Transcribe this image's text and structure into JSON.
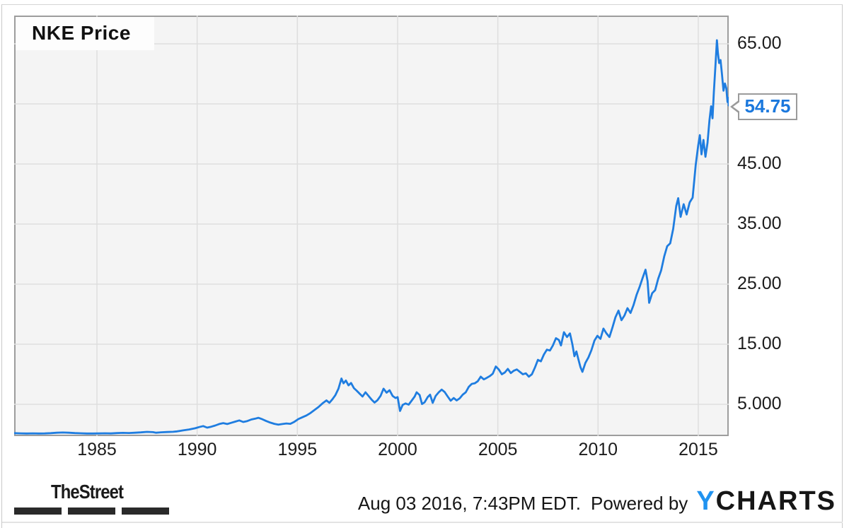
{
  "chart": {
    "title": "NKE Price",
    "callout_value": "54.75"
  },
  "colors": {
    "line_blue": "#1f7de0",
    "plot_background": "#f4f4f4",
    "gridline_gray": "#dedede",
    "plot_border_gray": "#9d9d9d",
    "frame_border_gray": "#c9c9c9",
    "axis_text": "#1c1c1c",
    "callout_text_blue": "#1b78dd",
    "callout_border_gray": "#9b9b9b",
    "ycharts_y_blue": "#2093f0",
    "ycharts_charts_black": "#161616",
    "thestreet_black": "#2a2a2a"
  },
  "footer": {
    "thestreet_label": "TheStreet",
    "timestamp": "Aug 03 2016, 7:43PM EDT.",
    "powered_by": "Powered by",
    "ycharts_y": "Y",
    "ycharts_rest": "CHARTS"
  },
  "chart_data": {
    "type": "line",
    "title": "NKE Price",
    "series_name": "NKE Price",
    "grid": "on",
    "legend": "none",
    "y_axis_side": "right",
    "last_value": 54.75,
    "last_value_label": "54.75",
    "x_axis": {
      "min": 1980.87,
      "max": 2016.52,
      "ticks": [
        {
          "v": 1985,
          "label": "1985"
        },
        {
          "v": 1990,
          "label": "1990"
        },
        {
          "v": 1995,
          "label": "1995"
        },
        {
          "v": 2000,
          "label": "2000"
        },
        {
          "v": 2005,
          "label": "2005"
        },
        {
          "v": 2010,
          "label": "2010"
        },
        {
          "v": 2015,
          "label": "2015"
        }
      ]
    },
    "y_axis": {
      "min": -0.29,
      "max": 69.7,
      "ticks": [
        {
          "v": 65,
          "label": "65.00"
        },
        {
          "v": 45,
          "label": "45.00"
        },
        {
          "v": 35,
          "label": "35.00"
        },
        {
          "v": 25,
          "label": "25.00"
        },
        {
          "v": 15,
          "label": "15.00"
        },
        {
          "v": 5,
          "label": "5.000"
        }
      ],
      "gridline_values": [
        5,
        15,
        25,
        35,
        45,
        55,
        65
      ]
    },
    "points": [
      [
        1980.87,
        0.2
      ],
      [
        1981.2,
        0.17
      ],
      [
        1981.5,
        0.15
      ],
      [
        1981.8,
        0.17
      ],
      [
        1982.1,
        0.14
      ],
      [
        1982.4,
        0.16
      ],
      [
        1982.7,
        0.2
      ],
      [
        1983.0,
        0.27
      ],
      [
        1983.3,
        0.31
      ],
      [
        1983.6,
        0.27
      ],
      [
        1983.9,
        0.22
      ],
      [
        1984.2,
        0.18
      ],
      [
        1984.5,
        0.15
      ],
      [
        1984.8,
        0.14
      ],
      [
        1985.1,
        0.16
      ],
      [
        1985.4,
        0.18
      ],
      [
        1985.7,
        0.16
      ],
      [
        1986.0,
        0.21
      ],
      [
        1986.3,
        0.25
      ],
      [
        1986.6,
        0.23
      ],
      [
        1986.9,
        0.27
      ],
      [
        1987.2,
        0.33
      ],
      [
        1987.5,
        0.41
      ],
      [
        1987.8,
        0.37
      ],
      [
        1987.95,
        0.27
      ],
      [
        1988.2,
        0.35
      ],
      [
        1988.5,
        0.39
      ],
      [
        1988.8,
        0.43
      ],
      [
        1989.0,
        0.5
      ],
      [
        1989.3,
        0.66
      ],
      [
        1989.6,
        0.82
      ],
      [
        1989.9,
        1.02
      ],
      [
        1990.1,
        1.22
      ],
      [
        1990.3,
        1.38
      ],
      [
        1990.5,
        1.12
      ],
      [
        1990.7,
        1.28
      ],
      [
        1990.9,
        1.48
      ],
      [
        1991.1,
        1.72
      ],
      [
        1991.3,
        1.88
      ],
      [
        1991.5,
        1.72
      ],
      [
        1991.7,
        1.92
      ],
      [
        1991.9,
        2.12
      ],
      [
        1992.1,
        2.32
      ],
      [
        1992.3,
        2.06
      ],
      [
        1992.5,
        2.22
      ],
      [
        1992.7,
        2.48
      ],
      [
        1992.9,
        2.62
      ],
      [
        1993.05,
        2.76
      ],
      [
        1993.25,
        2.52
      ],
      [
        1993.45,
        2.22
      ],
      [
        1993.65,
        1.96
      ],
      [
        1993.85,
        1.76
      ],
      [
        1994.05,
        1.62
      ],
      [
        1994.25,
        1.72
      ],
      [
        1994.45,
        1.82
      ],
      [
        1994.65,
        1.76
      ],
      [
        1994.85,
        2.1
      ],
      [
        1995.05,
        2.55
      ],
      [
        1995.25,
        2.85
      ],
      [
        1995.45,
        3.15
      ],
      [
        1995.65,
        3.55
      ],
      [
        1995.85,
        4.05
      ],
      [
        1996.05,
        4.55
      ],
      [
        1996.25,
        5.15
      ],
      [
        1996.45,
        5.65
      ],
      [
        1996.6,
        5.25
      ],
      [
        1996.75,
        5.85
      ],
      [
        1996.9,
        6.55
      ],
      [
        1997.05,
        7.6
      ],
      [
        1997.2,
        9.3
      ],
      [
        1997.3,
        8.5
      ],
      [
        1997.42,
        8.95
      ],
      [
        1997.55,
        8.15
      ],
      [
        1997.68,
        8.55
      ],
      [
        1997.82,
        7.7
      ],
      [
        1997.95,
        7.3
      ],
      [
        1998.1,
        6.8
      ],
      [
        1998.25,
        6.3
      ],
      [
        1998.4,
        7.0
      ],
      [
        1998.55,
        6.4
      ],
      [
        1998.7,
        5.8
      ],
      [
        1998.85,
        5.3
      ],
      [
        1999.0,
        5.7
      ],
      [
        1999.15,
        6.4
      ],
      [
        1999.3,
        7.6
      ],
      [
        1999.45,
        6.95
      ],
      [
        1999.6,
        7.35
      ],
      [
        1999.75,
        6.4
      ],
      [
        1999.9,
        6.05
      ],
      [
        2000.0,
        6.2
      ],
      [
        2000.12,
        3.9
      ],
      [
        2000.25,
        4.9
      ],
      [
        2000.4,
        5.15
      ],
      [
        2000.55,
        4.95
      ],
      [
        2000.7,
        5.6
      ],
      [
        2000.85,
        6.3
      ],
      [
        2000.95,
        7.0
      ],
      [
        2001.1,
        6.55
      ],
      [
        2001.22,
        5.05
      ],
      [
        2001.35,
        5.35
      ],
      [
        2001.5,
        6.2
      ],
      [
        2001.62,
        6.6
      ],
      [
        2001.75,
        5.25
      ],
      [
        2001.9,
        6.4
      ],
      [
        2002.05,
        7.0
      ],
      [
        2002.2,
        7.45
      ],
      [
        2002.35,
        7.05
      ],
      [
        2002.5,
        6.3
      ],
      [
        2002.65,
        5.6
      ],
      [
        2002.8,
        6.05
      ],
      [
        2002.95,
        5.65
      ],
      [
        2003.1,
        6.0
      ],
      [
        2003.25,
        6.6
      ],
      [
        2003.4,
        7.0
      ],
      [
        2003.55,
        7.9
      ],
      [
        2003.7,
        8.4
      ],
      [
        2003.85,
        8.5
      ],
      [
        2004.0,
        8.85
      ],
      [
        2004.15,
        9.6
      ],
      [
        2004.3,
        9.15
      ],
      [
        2004.45,
        9.4
      ],
      [
        2004.6,
        9.7
      ],
      [
        2004.75,
        10.1
      ],
      [
        2004.9,
        11.3
      ],
      [
        2005.05,
        10.8
      ],
      [
        2005.2,
        10.0
      ],
      [
        2005.35,
        10.3
      ],
      [
        2005.5,
        10.9
      ],
      [
        2005.65,
        10.2
      ],
      [
        2005.8,
        10.6
      ],
      [
        2005.95,
        10.8
      ],
      [
        2006.1,
        10.4
      ],
      [
        2006.25,
        10.0
      ],
      [
        2006.4,
        10.15
      ],
      [
        2006.55,
        9.6
      ],
      [
        2006.7,
        10.0
      ],
      [
        2006.85,
        11.1
      ],
      [
        2007.0,
        12.4
      ],
      [
        2007.15,
        12.15
      ],
      [
        2007.3,
        13.3
      ],
      [
        2007.45,
        14.1
      ],
      [
        2007.6,
        13.95
      ],
      [
        2007.75,
        14.8
      ],
      [
        2007.9,
        16.0
      ],
      [
        2008.05,
        15.7
      ],
      [
        2008.15,
        14.8
      ],
      [
        2008.3,
        17.0
      ],
      [
        2008.45,
        16.2
      ],
      [
        2008.6,
        16.8
      ],
      [
        2008.72,
        15.0
      ],
      [
        2008.82,
        13.0
      ],
      [
        2008.92,
        13.8
      ],
      [
        2009.02,
        12.5
      ],
      [
        2009.12,
        11.2
      ],
      [
        2009.22,
        10.4
      ],
      [
        2009.37,
        11.9
      ],
      [
        2009.52,
        12.8
      ],
      [
        2009.67,
        14.0
      ],
      [
        2009.82,
        15.6
      ],
      [
        2009.97,
        16.4
      ],
      [
        2010.12,
        15.9
      ],
      [
        2010.27,
        17.6
      ],
      [
        2010.42,
        16.8
      ],
      [
        2010.57,
        16.2
      ],
      [
        2010.72,
        17.8
      ],
      [
        2010.87,
        19.5
      ],
      [
        2011.02,
        20.6
      ],
      [
        2011.17,
        19.0
      ],
      [
        2011.32,
        19.8
      ],
      [
        2011.47,
        21.0
      ],
      [
        2011.62,
        20.2
      ],
      [
        2011.77,
        21.5
      ],
      [
        2011.92,
        23.2
      ],
      [
        2012.07,
        24.5
      ],
      [
        2012.22,
        26.0
      ],
      [
        2012.37,
        27.4
      ],
      [
        2012.47,
        25.5
      ],
      [
        2012.55,
        21.9
      ],
      [
        2012.7,
        23.5
      ],
      [
        2012.85,
        24.0
      ],
      [
        2013.0,
        25.9
      ],
      [
        2013.15,
        27.3
      ],
      [
        2013.3,
        29.6
      ],
      [
        2013.45,
        31.3
      ],
      [
        2013.6,
        31.8
      ],
      [
        2013.75,
        34.2
      ],
      [
        2013.9,
        38.0
      ],
      [
        2014.0,
        39.3
      ],
      [
        2014.12,
        36.2
      ],
      [
        2014.27,
        38.3
      ],
      [
        2014.42,
        36.6
      ],
      [
        2014.57,
        38.6
      ],
      [
        2014.72,
        39.4
      ],
      [
        2014.87,
        44.8
      ],
      [
        2015.0,
        48.1
      ],
      [
        2015.08,
        49.8
      ],
      [
        2015.16,
        46.6
      ],
      [
        2015.26,
        49.0
      ],
      [
        2015.36,
        46.2
      ],
      [
        2015.46,
        48.5
      ],
      [
        2015.56,
        52.3
      ],
      [
        2015.64,
        54.6
      ],
      [
        2015.71,
        52.6
      ],
      [
        2015.78,
        57.0
      ],
      [
        2015.86,
        61.5
      ],
      [
        2015.93,
        65.6
      ],
      [
        2015.98,
        63.5
      ],
      [
        2016.04,
        61.8
      ],
      [
        2016.11,
        62.3
      ],
      [
        2016.18,
        60.0
      ],
      [
        2016.26,
        57.2
      ],
      [
        2016.33,
        58.4
      ],
      [
        2016.4,
        57.6
      ],
      [
        2016.46,
        55.3
      ],
      [
        2016.5,
        56.0
      ],
      [
        2016.52,
        54.75
      ]
    ]
  }
}
